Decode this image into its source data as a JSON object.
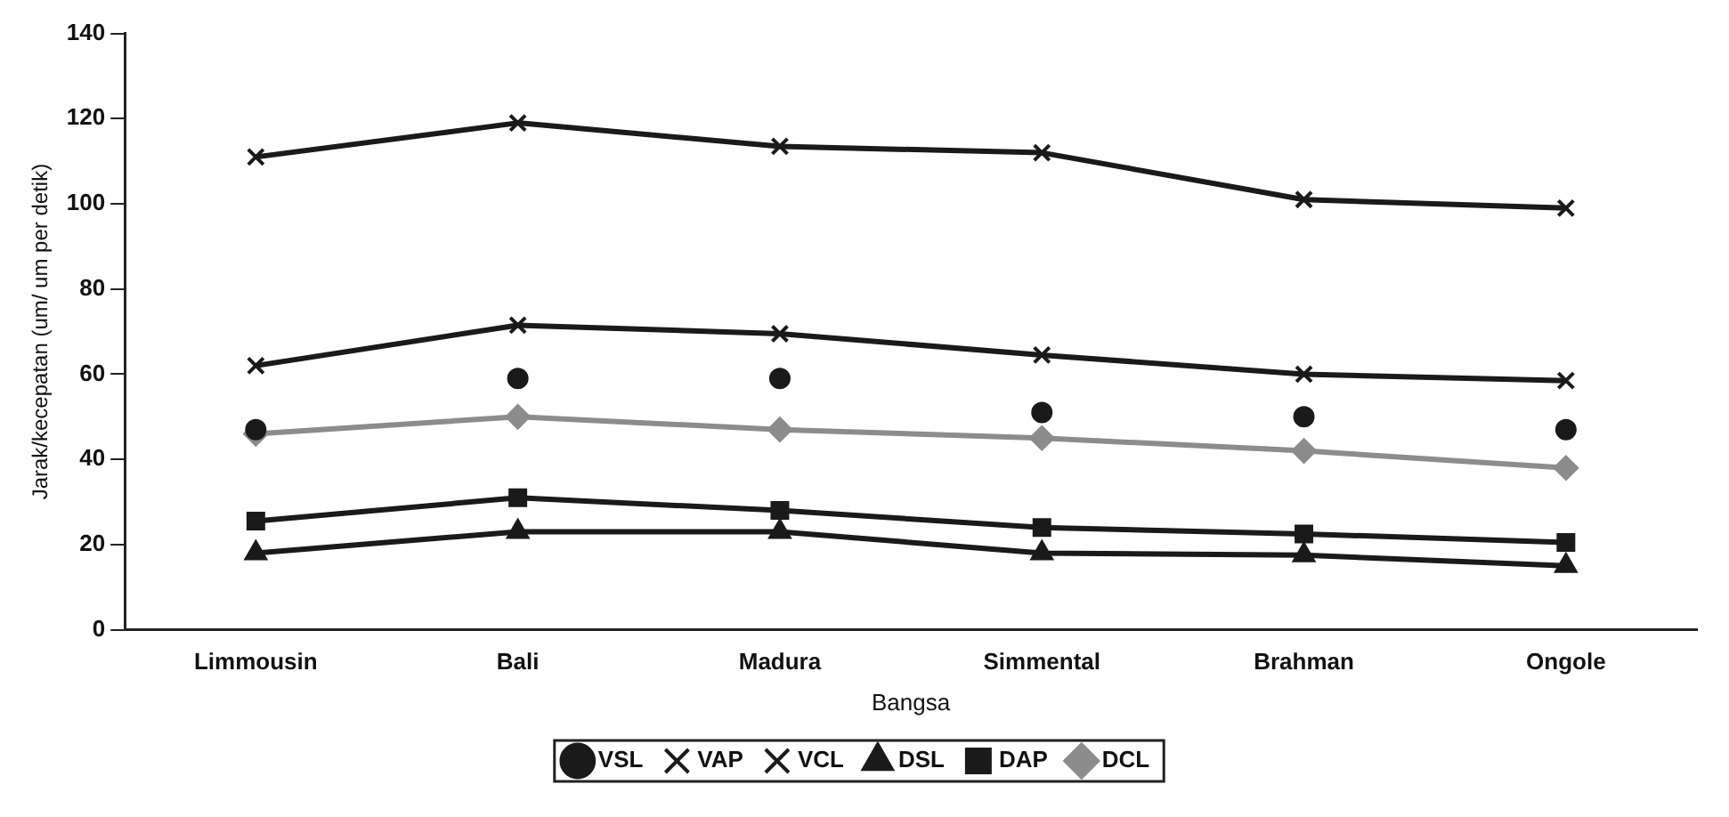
{
  "chart_data": {
    "type": "line",
    "xlabel": "Bangsa",
    "ylabel": "Jarak/kecepatan (um/ um per detik)",
    "categories": [
      "Limmousin",
      "Bali",
      "Madura",
      "Simmental",
      "Brahman",
      "Ongole"
    ],
    "ylim": [
      0,
      140
    ],
    "yticks": [
      0,
      20,
      40,
      60,
      80,
      100,
      120,
      140
    ],
    "grid": false,
    "legend": "bottom",
    "line_style": "solid",
    "series": [
      {
        "name": "DCL",
        "color": "#8c8c8c",
        "marker": "diamond",
        "values": [
          46,
          50,
          47,
          45,
          42,
          38
        ]
      },
      {
        "name": "DAP",
        "color": "#1a1a1a",
        "marker": "square",
        "values": [
          25.5,
          31,
          28,
          24,
          22.5,
          20.5
        ]
      },
      {
        "name": "DSL",
        "color": "#1a1a1a",
        "marker": "triangle",
        "values": [
          18,
          23,
          23,
          18,
          17.5,
          15
        ]
      },
      {
        "name": "VCL",
        "color": "#1a1a1a",
        "marker": "cross",
        "values": [
          111,
          119,
          113.5,
          112,
          101,
          99
        ]
      },
      {
        "name": "VAP",
        "color": "#1a1a1a",
        "marker": "cross",
        "values": [
          62,
          71.5,
          69.5,
          64.5,
          60,
          58.5
        ]
      },
      {
        "name": "VSL",
        "type": "scatter",
        "color": "#1a1a1a",
        "marker": "circle",
        "values": [
          47,
          59,
          59,
          51,
          50,
          47
        ]
      }
    ]
  }
}
